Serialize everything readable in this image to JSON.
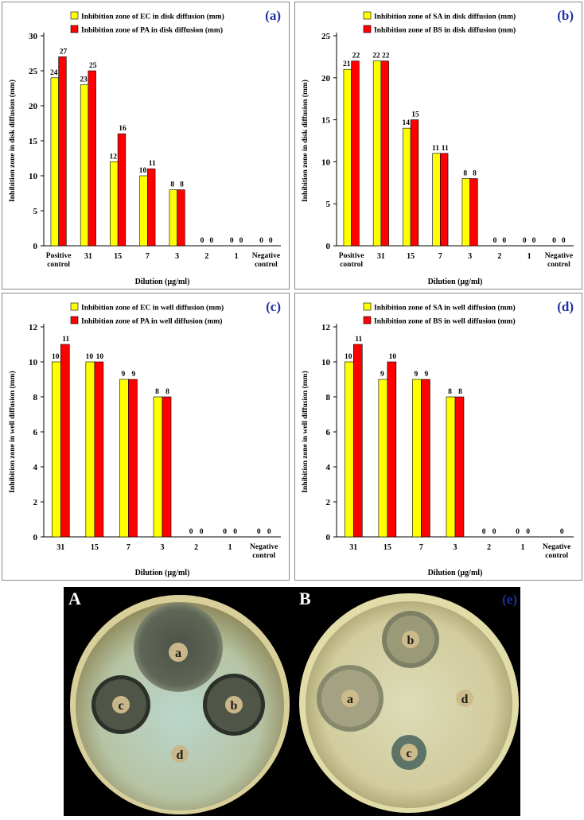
{
  "chart_data": [
    {
      "type": "bar",
      "panel": "(a)",
      "categories": [
        "Positive control",
        "31",
        "15",
        "7",
        "3",
        "2",
        "1",
        "Negative control"
      ],
      "series": [
        {
          "name": "Inhibition zone of EC in disk diffusion (mm)",
          "color": "#ffff00",
          "values": [
            24,
            23,
            12,
            10,
            8,
            0,
            0,
            0
          ]
        },
        {
          "name": "Inhibition zone of PA in disk diffusion (mm)",
          "color": "#ff0000",
          "values": [
            27,
            25,
            16,
            11,
            8,
            0,
            0,
            0
          ]
        }
      ],
      "xlabel": "Dilution (µg/ml)",
      "ylabel": "Inhibition  zone  in disk diffusion  (mm)",
      "ylim": [
        0,
        30
      ],
      "yticks": [
        0,
        5,
        10,
        15,
        20,
        25,
        30
      ]
    },
    {
      "type": "bar",
      "panel": "(b)",
      "categories": [
        "Positive control",
        "31",
        "15",
        "7",
        "3",
        "2",
        "1",
        "Negative control"
      ],
      "series": [
        {
          "name": "Inhibition zone of SA in disk  diffusion (mm)",
          "color": "#ffff00",
          "values": [
            21,
            22,
            14,
            11,
            8,
            0,
            0,
            0
          ]
        },
        {
          "name": "Inhibition zone of BS in disk diffusion (mm)",
          "color": "#ff0000",
          "values": [
            22,
            22,
            15,
            11,
            8,
            0,
            0,
            0
          ]
        }
      ],
      "xlabel": "Dilution (µg/ml)",
      "ylabel": "Inhibition  zone  in disk diffusion  (mm)",
      "ylim": [
        0,
        25
      ],
      "yticks": [
        0,
        5,
        10,
        15,
        20,
        25
      ]
    },
    {
      "type": "bar",
      "panel": "(c)",
      "categories": [
        "31",
        "15",
        "7",
        "3",
        "2",
        "1",
        "Negative control"
      ],
      "series": [
        {
          "name": "Inhibition zone of EC in well diffusion (mm)",
          "color": "#ffff00",
          "values": [
            10,
            10,
            9,
            8,
            0,
            0,
            0
          ]
        },
        {
          "name": "Inhibition zone of PA in well diffusion (mm)",
          "color": "#ff0000",
          "values": [
            11,
            10,
            9,
            8,
            0,
            0,
            0
          ]
        }
      ],
      "xlabel": "Dilution (µg/ml)",
      "ylabel": "Inhibition  zone  in well diffusion  (mm)",
      "ylim": [
        0,
        12
      ],
      "yticks": [
        0,
        2,
        4,
        6,
        8,
        10,
        12
      ]
    },
    {
      "type": "bar",
      "panel": "(d)",
      "categories": [
        "31",
        "15",
        "7",
        "3",
        "2",
        "1",
        "Negative control"
      ],
      "series": [
        {
          "name": "Inhibition zone of SA in well diffusion (mm)",
          "color": "#ffff00",
          "values": [
            10,
            9,
            9,
            8,
            0,
            0,
            null
          ]
        },
        {
          "name": "Inhibition zone of BS in well diffusion (mm)",
          "color": "#ff0000",
          "values": [
            11,
            10,
            9,
            8,
            0,
            0,
            0
          ]
        }
      ],
      "xlabel": "Dilution (µg/ml)",
      "ylabel": "Inhibition  zone  in well diffusion  (mm)",
      "ylim": [
        0,
        12
      ],
      "yticks": [
        0,
        2,
        4,
        6,
        8,
        10,
        12
      ]
    }
  ],
  "photo": {
    "panel_tag": "(e)",
    "plate_A": {
      "label": "A",
      "wells": [
        "a",
        "b",
        "c",
        "d"
      ]
    },
    "plate_B": {
      "label": "B",
      "wells": [
        "a",
        "b",
        "c",
        "d"
      ]
    }
  },
  "colors": {
    "panel_tag": "#1f2fa5",
    "yellow": "#ffff00",
    "red": "#ff0000"
  }
}
